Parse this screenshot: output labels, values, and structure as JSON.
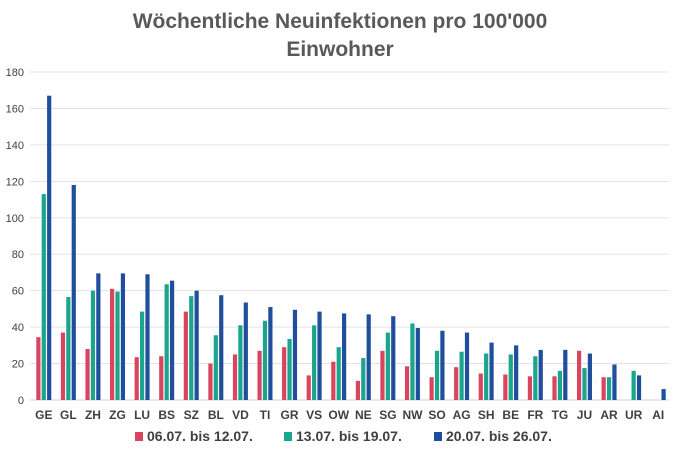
{
  "chart_data": {
    "type": "bar",
    "title_lines": [
      "Wöchentliche Neuinfektionen pro 100'000",
      "Einwohner"
    ],
    "xlabel": "",
    "ylabel": "",
    "ylim": [
      0,
      180
    ],
    "yticks": [
      0,
      20,
      40,
      60,
      80,
      100,
      120,
      140,
      160,
      180
    ],
    "grid": true,
    "legend_position": "bottom",
    "categories": [
      "GE",
      "GL",
      "ZH",
      "ZG",
      "LU",
      "BS",
      "SZ",
      "BL",
      "VD",
      "TI",
      "GR",
      "VS",
      "OW",
      "NE",
      "SG",
      "NW",
      "SO",
      "AG",
      "SH",
      "BE",
      "FR",
      "TG",
      "JU",
      "AR",
      "UR",
      "AI"
    ],
    "series": [
      {
        "name": "06.07. bis 12.07.",
        "color": "#d9455f",
        "values": [
          34.5,
          37,
          28,
          61,
          23.5,
          24,
          48.5,
          20,
          25,
          27,
          29,
          13.5,
          21,
          10.5,
          27,
          18.5,
          12.5,
          18,
          14.5,
          14,
          13,
          13,
          27,
          12.5,
          0,
          0
        ]
      },
      {
        "name": "13.07. bis 19.07.",
        "color": "#1aa58c",
        "values": [
          113,
          56.5,
          60,
          59.5,
          48.5,
          63.5,
          57,
          35.5,
          41,
          43.5,
          33.5,
          41,
          29,
          23,
          37,
          42,
          27,
          26.5,
          25.5,
          25,
          24,
          16,
          17.5,
          12.5,
          16,
          0
        ]
      },
      {
        "name": "20.07. bis 26.07.",
        "color": "#1f4e9c",
        "values": [
          167,
          118,
          69.5,
          69.5,
          69,
          65.5,
          60,
          57.5,
          53.5,
          51,
          49.5,
          48.5,
          47.5,
          47,
          46,
          39.5,
          38,
          37,
          31.5,
          30,
          27.5,
          27.5,
          25.5,
          19.5,
          13.5,
          6
        ]
      }
    ]
  }
}
